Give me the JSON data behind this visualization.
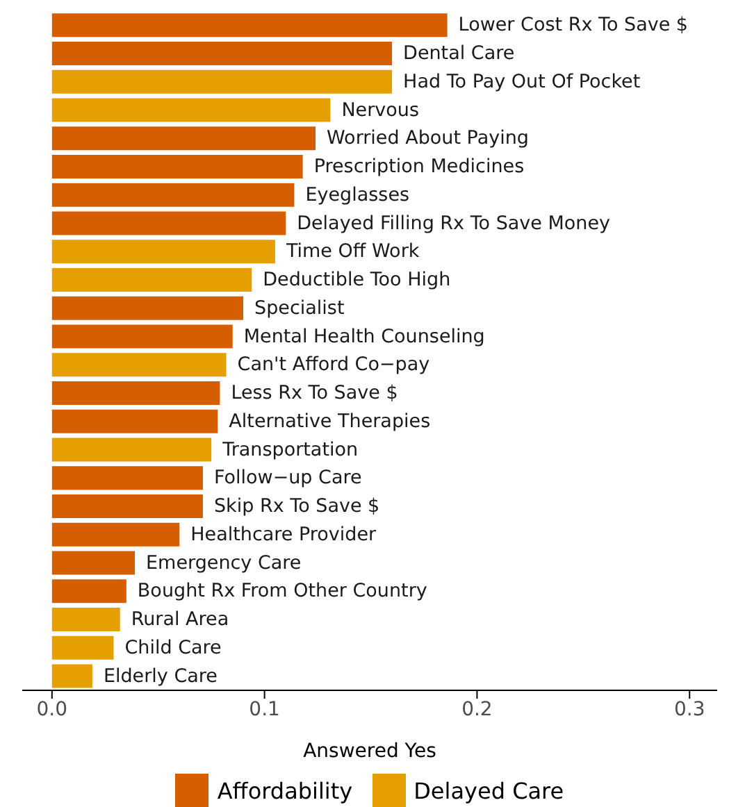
{
  "chart_data": {
    "type": "bar",
    "orientation": "horizontal",
    "xlabel": "Answered Yes",
    "categories": [
      "Lower Cost Rx To Save $",
      "Dental Care",
      "Had To Pay Out Of Pocket",
      "Nervous",
      "Worried About Paying",
      "Prescription Medicines",
      "Eyeglasses",
      "Delayed Filling Rx To Save Money",
      "Time Off Work",
      "Deductible Too High",
      "Specialist",
      "Mental Health Counseling",
      "Can't Afford Co−pay",
      "Less Rx To Save $",
      "Alternative Therapies",
      "Transportation",
      "Follow−up Care",
      "Skip Rx To Save $",
      "Healthcare Provider",
      "Emergency Care",
      "Bought Rx From Other Country",
      "Rural Area",
      "Child Care",
      "Elderly Care"
    ],
    "series": [
      {
        "name": "Affordability",
        "color": "#d55e00",
        "values": [
          0.186,
          0.16,
          null,
          null,
          0.124,
          0.118,
          0.114,
          0.11,
          null,
          null,
          0.09,
          0.085,
          null,
          0.079,
          0.078,
          null,
          0.071,
          0.071,
          0.06,
          0.039,
          0.035,
          null,
          null,
          null
        ]
      },
      {
        "name": "Delayed Care",
        "color": "#e69f00",
        "values": [
          null,
          null,
          0.16,
          0.131,
          null,
          null,
          null,
          null,
          0.105,
          0.094,
          null,
          null,
          0.082,
          null,
          null,
          0.075,
          null,
          null,
          null,
          null,
          null,
          0.032,
          0.029,
          0.019
        ]
      }
    ],
    "xlim": [
      -0.014,
      0.313
    ],
    "xticks": [
      {
        "value": 0,
        "label": "0.0"
      },
      {
        "value": 0.1,
        "label": "0.1"
      },
      {
        "value": 0.2,
        "label": "0.2"
      },
      {
        "value": 0.3,
        "label": "0.3"
      }
    ],
    "grid": false,
    "legend": "bottom"
  }
}
